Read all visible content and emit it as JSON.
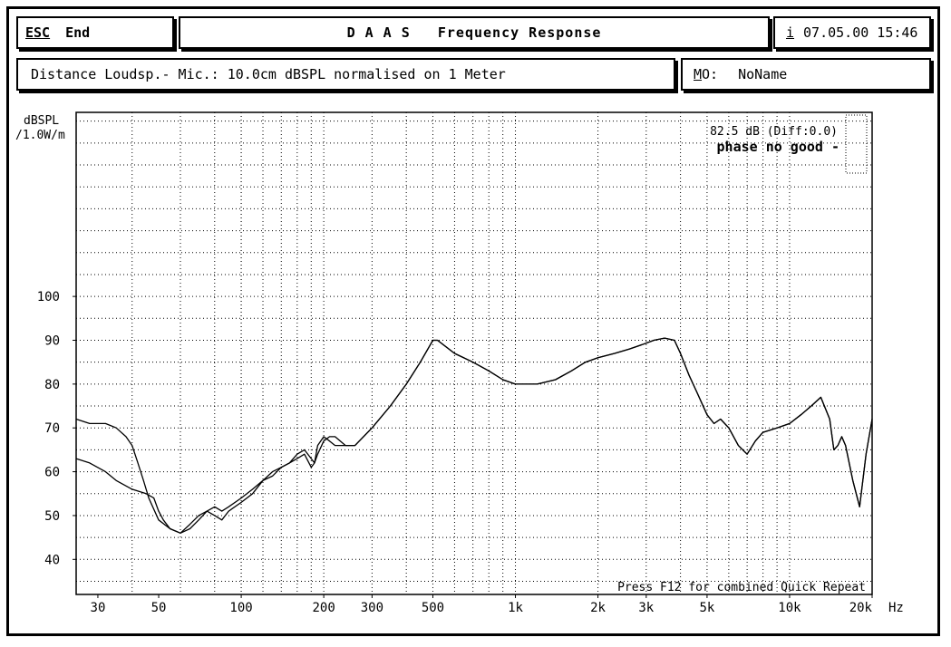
{
  "header": {
    "esc_label": "ESC",
    "end_label": "End",
    "title": "D A A S   Frequency Response",
    "info_key": "i",
    "datetime": "07.05.00 15:46"
  },
  "subheader": {
    "description": "Distance Loudsp.- Mic.: 10.0cm dBSPL normalised on 1 Meter",
    "mo_key": "M",
    "mo_rest": "O:",
    "mo_value": "NoName"
  },
  "chart_data": {
    "type": "line",
    "ylabel_line1": "dBSPL",
    "ylabel_line2": "/1.0W/m",
    "xunit": "Hz",
    "xscale": "log",
    "xlim": [
      25,
      20000
    ],
    "ylim": [
      32,
      142
    ],
    "grid": true,
    "yticks": [
      40,
      50,
      60,
      70,
      80,
      90,
      100
    ],
    "xticks": [
      {
        "v": 30,
        "label": "30"
      },
      {
        "v": 50,
        "label": "50"
      },
      {
        "v": 100,
        "label": "100"
      },
      {
        "v": 200,
        "label": "200"
      },
      {
        "v": 300,
        "label": "300"
      },
      {
        "v": 500,
        "label": "500"
      },
      {
        "v": 1000,
        "label": "1k"
      },
      {
        "v": 2000,
        "label": "2k"
      },
      {
        "v": 3000,
        "label": "3k"
      },
      {
        "v": 5000,
        "label": "5k"
      },
      {
        "v": 10000,
        "label": "10k"
      },
      {
        "v": 20000,
        "label": "20k"
      }
    ],
    "annotation_level": "82.5 dB (Diff:0.0)",
    "annotation_phase": "phase no good -",
    "footer_hint": "Press F12 for combined Quick Repeat",
    "series": [
      {
        "values": [
          [
            25,
            72
          ],
          [
            28,
            71
          ],
          [
            32,
            71
          ],
          [
            35,
            70
          ],
          [
            38,
            68
          ],
          [
            40,
            66
          ],
          [
            42,
            62
          ],
          [
            44,
            58
          ],
          [
            46,
            54
          ],
          [
            50,
            49
          ],
          [
            55,
            47
          ],
          [
            60,
            46
          ],
          [
            65,
            48
          ],
          [
            70,
            50
          ],
          [
            75,
            51
          ],
          [
            80,
            50
          ],
          [
            85,
            49
          ],
          [
            90,
            51
          ],
          [
            100,
            53
          ],
          [
            110,
            55
          ],
          [
            120,
            58
          ],
          [
            130,
            60
          ],
          [
            140,
            61
          ],
          [
            150,
            62
          ],
          [
            160,
            64
          ],
          [
            170,
            65
          ],
          [
            180,
            63
          ],
          [
            185,
            62
          ],
          [
            190,
            64
          ],
          [
            200,
            67
          ],
          [
            210,
            68
          ],
          [
            220,
            68
          ],
          [
            240,
            66
          ],
          [
            260,
            66
          ],
          [
            300,
            70
          ],
          [
            350,
            75
          ],
          [
            400,
            80
          ],
          [
            450,
            85
          ],
          [
            500,
            90
          ],
          [
            520,
            90
          ],
          [
            600,
            87
          ],
          [
            700,
            85
          ],
          [
            800,
            83
          ],
          [
            900,
            81
          ],
          [
            1000,
            80
          ],
          [
            1200,
            80
          ],
          [
            1400,
            81
          ],
          [
            1600,
            83
          ],
          [
            1800,
            85
          ],
          [
            2000,
            86
          ],
          [
            2300,
            87
          ],
          [
            2600,
            88
          ],
          [
            2900,
            89
          ],
          [
            3200,
            90
          ],
          [
            3500,
            90.5
          ],
          [
            3800,
            90
          ],
          [
            4000,
            87
          ],
          [
            4300,
            82
          ],
          [
            4600,
            78
          ],
          [
            5000,
            73
          ],
          [
            5300,
            71
          ],
          [
            5600,
            72
          ],
          [
            6000,
            70
          ],
          [
            6500,
            66
          ],
          [
            7000,
            64
          ],
          [
            7500,
            67
          ],
          [
            8000,
            69
          ],
          [
            9000,
            70
          ],
          [
            10000,
            71
          ],
          [
            11000,
            73
          ],
          [
            12000,
            75
          ],
          [
            13000,
            77
          ],
          [
            14000,
            72
          ],
          [
            14500,
            65
          ],
          [
            15000,
            66
          ],
          [
            15500,
            68
          ],
          [
            16000,
            66
          ],
          [
            17000,
            58
          ],
          [
            18000,
            52
          ],
          [
            19000,
            64
          ],
          [
            20000,
            72
          ]
        ]
      },
      {
        "values": [
          [
            25,
            63
          ],
          [
            28,
            62
          ],
          [
            32,
            60
          ],
          [
            35,
            58
          ],
          [
            40,
            56
          ],
          [
            45,
            55
          ],
          [
            48,
            54
          ],
          [
            50,
            51
          ],
          [
            52,
            49
          ],
          [
            55,
            47
          ],
          [
            60,
            46
          ],
          [
            65,
            47
          ],
          [
            70,
            49
          ],
          [
            75,
            51
          ],
          [
            80,
            52
          ],
          [
            85,
            51
          ],
          [
            90,
            52
          ],
          [
            100,
            54
          ],
          [
            110,
            56
          ],
          [
            120,
            58
          ],
          [
            130,
            59
          ],
          [
            140,
            61
          ],
          [
            150,
            62
          ],
          [
            160,
            63
          ],
          [
            170,
            64
          ],
          [
            180,
            61
          ],
          [
            185,
            62
          ],
          [
            190,
            66
          ],
          [
            200,
            68
          ],
          [
            210,
            67
          ],
          [
            220,
            66
          ],
          [
            240,
            66
          ],
          [
            260,
            66
          ],
          [
            300,
            70
          ],
          [
            350,
            75
          ],
          [
            400,
            80
          ],
          [
            450,
            85
          ],
          [
            500,
            90
          ],
          [
            520,
            90
          ],
          [
            600,
            87
          ],
          [
            700,
            85
          ],
          [
            800,
            83
          ],
          [
            900,
            81
          ],
          [
            1000,
            80
          ],
          [
            1200,
            80
          ],
          [
            1400,
            81
          ],
          [
            1600,
            83
          ],
          [
            1800,
            85
          ],
          [
            2000,
            86
          ],
          [
            2300,
            87
          ],
          [
            2600,
            88
          ],
          [
            2900,
            89
          ],
          [
            3200,
            90
          ],
          [
            3500,
            90.5
          ],
          [
            3800,
            90
          ],
          [
            4000,
            87
          ],
          [
            4300,
            82
          ],
          [
            4600,
            78
          ],
          [
            5000,
            73
          ],
          [
            5300,
            71
          ],
          [
            5600,
            72
          ],
          [
            6000,
            70
          ],
          [
            6500,
            66
          ],
          [
            7000,
            64
          ],
          [
            7500,
            67
          ],
          [
            8000,
            69
          ],
          [
            9000,
            70
          ],
          [
            10000,
            71
          ],
          [
            11000,
            73
          ],
          [
            12000,
            75
          ],
          [
            13000,
            77
          ],
          [
            14000,
            72
          ],
          [
            14500,
            65
          ],
          [
            15000,
            66
          ],
          [
            15500,
            68
          ],
          [
            16000,
            66
          ],
          [
            17000,
            58
          ],
          [
            18000,
            52
          ],
          [
            19000,
            64
          ],
          [
            20000,
            72
          ]
        ]
      }
    ]
  }
}
